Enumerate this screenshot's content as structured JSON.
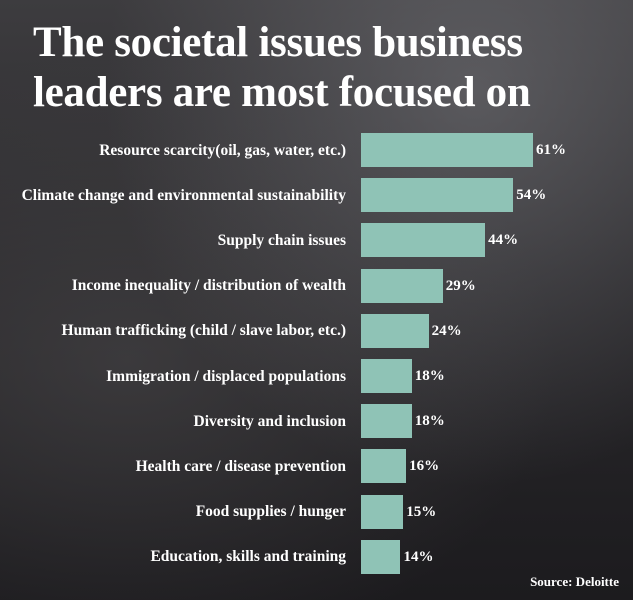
{
  "chart_data": {
    "type": "bar",
    "orientation": "horizontal",
    "title": "The societal issues business leaders are most focused on",
    "categories": [
      "Resource scarcity(oil, gas, water, etc.)",
      "Climate change and environmental sustainability",
      "Supply chain issues",
      "Income inequality / distribution of wealth",
      "Human trafficking (child / slave labor, etc.)",
      "Immigration / displaced populations",
      "Diversity and inclusion",
      "Health care / disease prevention",
      "Food supplies / hunger",
      "Education, skills and training"
    ],
    "values": [
      61,
      54,
      44,
      29,
      24,
      18,
      18,
      16,
      15,
      14
    ],
    "value_labels": [
      "61%",
      "54%",
      "44%",
      "29%",
      "24%",
      "18%",
      "18%",
      "16%",
      "15%",
      "14%"
    ],
    "color": "#8fc3b6",
    "source": "Source: Deloitte"
  }
}
